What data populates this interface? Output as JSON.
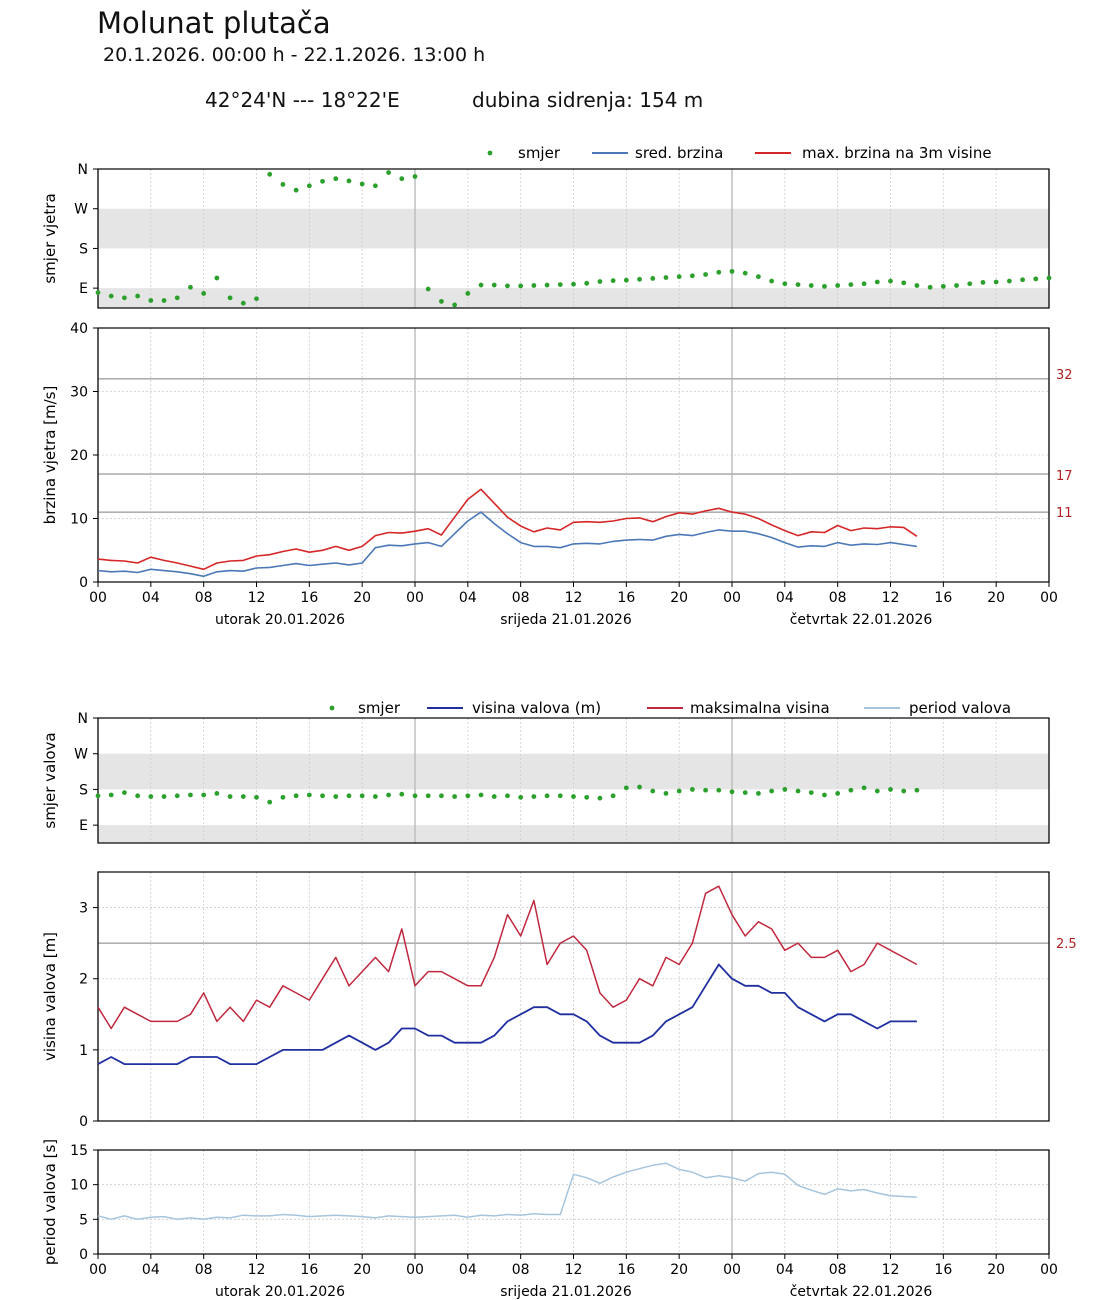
{
  "header": {
    "title": "Molunat plutača",
    "period": "20.1.2026. 00:00 h - 22.1.2026. 13:00 h",
    "coords": "42°24'N --- 18°22'E",
    "depth": "dubina sidrenja: 154 m"
  },
  "x_axis": {
    "tick_labels": [
      "00",
      "04",
      "08",
      "12",
      "16",
      "20",
      "00",
      "04",
      "08",
      "12",
      "16",
      "20",
      "00",
      "04",
      "08",
      "12",
      "16",
      "20",
      "00"
    ],
    "day_labels": [
      "utorak  20.01.2026",
      "srijeda  21.01.2026",
      "četvrtak  22.01.2026"
    ],
    "range_hours": [
      0,
      72
    ]
  },
  "colors": {
    "direction": "#2ca02c",
    "mean_wind": "#4c78b8",
    "max_wind": "#d62728",
    "wave_height": "#1f2fa0",
    "max_wave": "#c0283e",
    "wave_period": "#a7c4dd",
    "threshold": "#b22222"
  },
  "chart_data": [
    {
      "id": "wind_dir",
      "type": "scatter",
      "ylabel": "smjer vjetra",
      "ytick_labels": [
        "N",
        "W",
        "S",
        "E"
      ],
      "ylim": [
        45,
        360
      ],
      "legend": [
        "smjer",
        "sred. brzina",
        "max. brzina na 3m visine"
      ],
      "x": [
        0,
        1,
        2,
        3,
        4,
        5,
        6,
        7,
        8,
        9,
        10,
        11,
        12,
        13,
        14,
        15,
        16,
        17,
        18,
        19,
        20,
        21,
        22,
        23,
        24,
        25,
        26,
        27,
        28,
        29,
        30,
        31,
        32,
        33,
        34,
        35,
        36,
        37,
        38,
        39,
        40,
        41,
        42,
        43,
        44,
        45,
        46,
        47,
        48,
        49,
        50,
        51,
        52,
        53,
        54,
        55,
        56,
        57,
        58,
        59,
        60,
        61,
        62,
        63,
        64,
        65,
        66,
        67,
        68,
        69,
        70,
        71,
        72
      ],
      "values": [
        80,
        72,
        68,
        72,
        62,
        62,
        68,
        92,
        78,
        113,
        68,
        56,
        66,
        348,
        325,
        312,
        322,
        332,
        338,
        333,
        326,
        322,
        352,
        338,
        343,
        88,
        60,
        52,
        78,
        97,
        97,
        95,
        95,
        96,
        97,
        98,
        99,
        101,
        105,
        107,
        108,
        110,
        112,
        114,
        116,
        118,
        121,
        126,
        128,
        124,
        116,
        106,
        100,
        98,
        96,
        94,
        96,
        98,
        100,
        104,
        106,
        102,
        96,
        92,
        94,
        96,
        100,
        103,
        104,
        106,
        109,
        111,
        113
      ],
      "note": "values in degrees; 90=E 180=S 270=W 360=N (bottom of plot ~45°)"
    },
    {
      "id": "wind_speed",
      "type": "line",
      "ylabel": "brzina vjetra [m/s]",
      "ylim": [
        0,
        40
      ],
      "yticks": [
        0,
        10,
        20,
        30,
        40
      ],
      "thresholds": [
        11,
        17,
        32
      ],
      "x": [
        0,
        1,
        2,
        3,
        4,
        5,
        6,
        7,
        8,
        9,
        10,
        11,
        12,
        13,
        14,
        15,
        16,
        17,
        18,
        19,
        20,
        21,
        22,
        23,
        24,
        25,
        26,
        27,
        28,
        29,
        30,
        31,
        32,
        33,
        34,
        35,
        36,
        37,
        38,
        39,
        40,
        41,
        42,
        43,
        44,
        45,
        46,
        47,
        48,
        49,
        50,
        51,
        52,
        53,
        54,
        55,
        56,
        57,
        58,
        59,
        60,
        61,
        62
      ],
      "series": [
        {
          "name": "sred. brzina",
          "values": [
            1.8,
            1.6,
            1.7,
            1.5,
            2.0,
            1.8,
            1.6,
            1.3,
            0.9,
            1.6,
            1.8,
            1.7,
            2.2,
            2.3,
            2.6,
            2.9,
            2.6,
            2.8,
            3.0,
            2.7,
            3.0,
            5.4,
            5.8,
            5.7,
            6.0,
            6.2,
            5.6,
            7.6,
            9.6,
            11.0,
            9.2,
            7.6,
            6.2,
            5.6,
            5.6,
            5.4,
            6.0,
            6.1,
            6.0,
            6.4,
            6.6,
            6.7,
            6.6,
            7.2,
            7.5,
            7.3,
            7.8,
            8.2,
            8.0,
            8.0,
            7.6,
            7.0,
            6.2,
            5.5,
            5.7,
            5.6,
            6.2,
            5.8,
            6.0,
            5.9,
            6.2,
            5.9,
            5.6
          ]
        },
        {
          "name": "max. brzina na 3m visine",
          "values": [
            3.6,
            3.4,
            3.3,
            3.0,
            3.9,
            3.4,
            3.0,
            2.5,
            2.0,
            3.0,
            3.3,
            3.4,
            4.1,
            4.3,
            4.8,
            5.2,
            4.7,
            5.0,
            5.6,
            5.0,
            5.6,
            7.3,
            7.8,
            7.7,
            8.0,
            8.4,
            7.4,
            10.2,
            13.0,
            14.6,
            12.4,
            10.2,
            8.8,
            7.9,
            8.5,
            8.2,
            9.4,
            9.5,
            9.4,
            9.6,
            10.0,
            10.1,
            9.5,
            10.3,
            10.9,
            10.7,
            11.2,
            11.6,
            11.0,
            10.7,
            10.0,
            9.0,
            8.1,
            7.3,
            7.9,
            7.8,
            8.9,
            8.1,
            8.5,
            8.4,
            8.7,
            8.6,
            7.2
          ]
        }
      ]
    },
    {
      "id": "wave_dir",
      "type": "scatter",
      "ylabel": "smjer valova",
      "ytick_labels": [
        "N",
        "W",
        "S",
        "E"
      ],
      "ylim": [
        45,
        360
      ],
      "legend": [
        "smjer",
        "visina valova (m)",
        "maksimalna visina",
        "period valova"
      ],
      "x": [
        0,
        1,
        2,
        3,
        4,
        5,
        6,
        7,
        8,
        9,
        10,
        11,
        12,
        13,
        14,
        15,
        16,
        17,
        18,
        19,
        20,
        21,
        22,
        23,
        24,
        25,
        26,
        27,
        28,
        29,
        30,
        31,
        32,
        33,
        34,
        35,
        36,
        37,
        38,
        39,
        40,
        41,
        42,
        43,
        44,
        45,
        46,
        47,
        48,
        49,
        50,
        51,
        52,
        53,
        54,
        55,
        56,
        57,
        58,
        59,
        60,
        61,
        62
      ],
      "values": [
        164,
        166,
        172,
        164,
        162,
        162,
        164,
        166,
        166,
        170,
        162,
        162,
        160,
        148,
        160,
        164,
        166,
        164,
        162,
        164,
        164,
        162,
        166,
        168,
        164,
        164,
        164,
        162,
        164,
        166,
        162,
        164,
        160,
        162,
        164,
        164,
        162,
        160,
        158,
        164,
        184,
        186,
        176,
        170,
        176,
        180,
        178,
        178,
        174,
        172,
        170,
        176,
        180,
        176,
        172,
        166,
        170,
        178,
        184,
        176,
        180,
        176,
        178
      ]
    },
    {
      "id": "wave_height",
      "type": "line",
      "ylabel": "visina valova [m]",
      "ylim": [
        0,
        3.5
      ],
      "yticks": [
        0,
        1,
        2,
        3
      ],
      "thresholds": [
        2.5
      ],
      "x": [
        0,
        1,
        2,
        3,
        4,
        5,
        6,
        7,
        8,
        9,
        10,
        11,
        12,
        13,
        14,
        15,
        16,
        17,
        18,
        19,
        20,
        21,
        22,
        23,
        24,
        25,
        26,
        27,
        28,
        29,
        30,
        31,
        32,
        33,
        34,
        35,
        36,
        37,
        38,
        39,
        40,
        41,
        42,
        43,
        44,
        45,
        46,
        47,
        48,
        49,
        50,
        51,
        52,
        53,
        54,
        55,
        56,
        57,
        58,
        59,
        60,
        61,
        62
      ],
      "series": [
        {
          "name": "visina valova (m)",
          "values": [
            0.8,
            0.9,
            0.8,
            0.8,
            0.8,
            0.8,
            0.8,
            0.9,
            0.9,
            0.9,
            0.8,
            0.8,
            0.8,
            0.9,
            1.0,
            1.0,
            1.0,
            1.0,
            1.1,
            1.2,
            1.1,
            1.0,
            1.1,
            1.3,
            1.3,
            1.2,
            1.2,
            1.1,
            1.1,
            1.1,
            1.2,
            1.4,
            1.5,
            1.6,
            1.6,
            1.5,
            1.5,
            1.4,
            1.2,
            1.1,
            1.1,
            1.1,
            1.2,
            1.4,
            1.5,
            1.6,
            1.9,
            2.2,
            2.0,
            1.9,
            1.9,
            1.8,
            1.8,
            1.6,
            1.5,
            1.4,
            1.5,
            1.5,
            1.4,
            1.3,
            1.4,
            1.4,
            1.4
          ]
        },
        {
          "name": "maksimalna visina",
          "values": [
            1.6,
            1.3,
            1.6,
            1.5,
            1.4,
            1.4,
            1.4,
            1.5,
            1.8,
            1.4,
            1.6,
            1.4,
            1.7,
            1.6,
            1.9,
            1.8,
            1.7,
            2.0,
            2.3,
            1.9,
            2.1,
            2.3,
            2.1,
            2.7,
            1.9,
            2.1,
            2.1,
            2.0,
            1.9,
            1.9,
            2.3,
            2.9,
            2.6,
            3.1,
            2.2,
            2.5,
            2.6,
            2.4,
            1.8,
            1.6,
            1.7,
            2.0,
            1.9,
            2.3,
            2.2,
            2.5,
            3.2,
            3.3,
            2.9,
            2.6,
            2.8,
            2.7,
            2.4,
            2.5,
            2.3,
            2.3,
            2.4,
            2.1,
            2.2,
            2.5,
            2.4,
            2.3,
            2.2
          ]
        },
        {
          "name": "period valova",
          "values": [
            5.5,
            5.0,
            5.5,
            5.0,
            5.3,
            5.4,
            5.0,
            5.2,
            5.0,
            5.3,
            5.2,
            5.6,
            5.5,
            5.5,
            5.7,
            5.6,
            5.4,
            5.5,
            5.6,
            5.5,
            5.4,
            5.2,
            5.5,
            5.4,
            5.3,
            5.4,
            5.5,
            5.6,
            5.3,
            5.6,
            5.5,
            5.7,
            5.6,
            5.8,
            5.7,
            5.7,
            11.5,
            11.0,
            10.2,
            11.1,
            11.8,
            12.3,
            12.8,
            13.1,
            12.2,
            11.8,
            11.0,
            11.3,
            11.0,
            10.5,
            11.6,
            11.8,
            11.5,
            9.9,
            9.2,
            8.6,
            9.4,
            9.1,
            9.3,
            8.8,
            8.4,
            8.3,
            8.2
          ]
        }
      ]
    },
    {
      "id": "wave_period",
      "type": "line",
      "ylabel": "period valova [s]",
      "ylim": [
        0,
        15
      ],
      "yticks": [
        0,
        5,
        10,
        15
      ],
      "x": [
        0,
        1,
        2,
        3,
        4,
        5,
        6,
        7,
        8,
        9,
        10,
        11,
        12,
        13,
        14,
        15,
        16,
        17,
        18,
        19,
        20,
        21,
        22,
        23,
        24,
        25,
        26,
        27,
        28,
        29,
        30,
        31,
        32,
        33,
        34,
        35,
        36,
        37,
        38,
        39,
        40,
        41,
        42,
        43,
        44,
        45,
        46,
        47,
        48,
        49,
        50,
        51,
        52,
        53,
        54,
        55,
        56,
        57,
        58,
        59,
        60,
        61,
        62
      ],
      "values": [
        5.5,
        5.0,
        5.5,
        5.0,
        5.3,
        5.4,
        5.0,
        5.2,
        5.0,
        5.3,
        5.2,
        5.6,
        5.5,
        5.5,
        5.7,
        5.6,
        5.4,
        5.5,
        5.6,
        5.5,
        5.4,
        5.2,
        5.5,
        5.4,
        5.3,
        5.4,
        5.5,
        5.6,
        5.3,
        5.6,
        5.5,
        5.7,
        5.6,
        5.8,
        5.7,
        5.7,
        11.5,
        11.0,
        10.2,
        11.1,
        11.8,
        12.3,
        12.8,
        13.1,
        12.2,
        11.8,
        11.0,
        11.3,
        11.0,
        10.5,
        11.6,
        11.8,
        11.5,
        9.9,
        9.2,
        8.6,
        9.4,
        9.1,
        9.3,
        8.8,
        8.4,
        8.3,
        8.2
      ]
    }
  ]
}
